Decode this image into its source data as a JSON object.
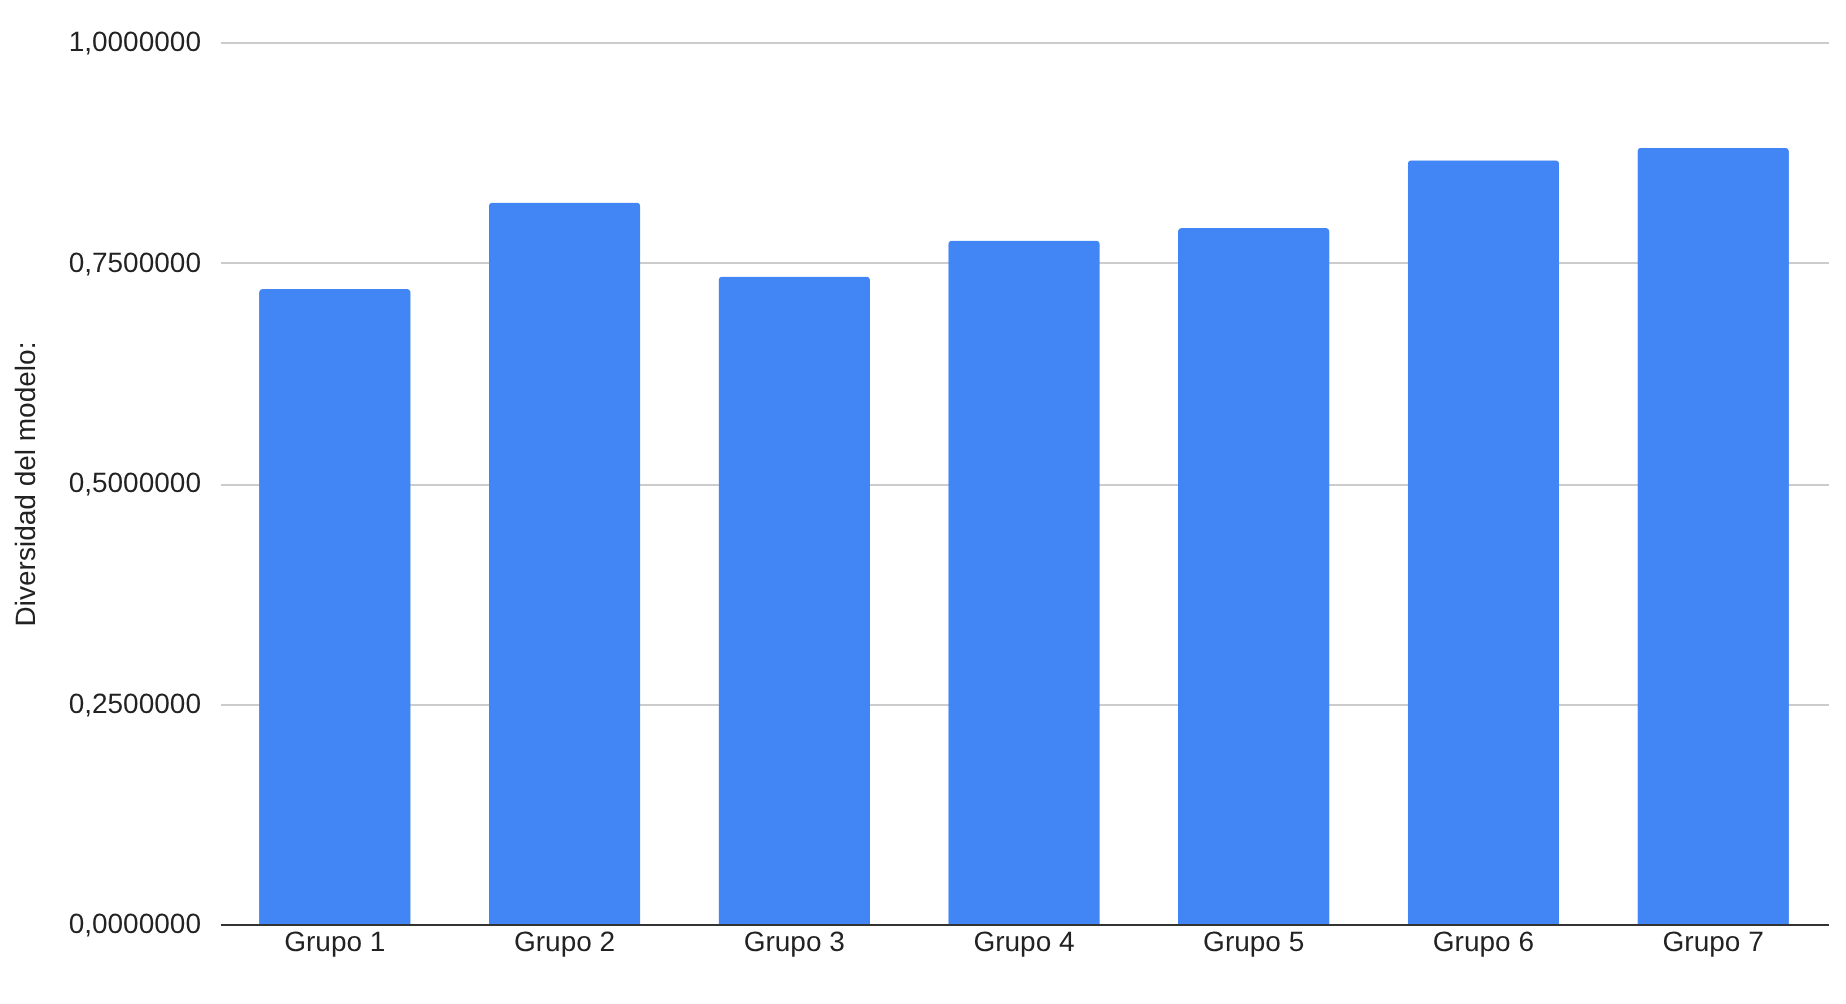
{
  "chart_data": {
    "type": "bar",
    "ylabel": "Diversidad del modelo:",
    "categories": [
      "Grupo 1",
      "Grupo 2",
      "Grupo 3",
      "Grupo 4",
      "Grupo 5",
      "Grupo 6",
      "Grupo 7"
    ],
    "values": [
      0.72,
      0.818,
      0.734,
      0.775,
      0.789,
      0.866,
      0.88
    ],
    "color": "#4285f4",
    "ylim": [
      0,
      1
    ],
    "yticks": [
      {
        "value": 0,
        "label": "0,0000000"
      },
      {
        "value": 0.25,
        "label": "0,2500000"
      },
      {
        "value": 0.5,
        "label": "0,5000000"
      },
      {
        "value": 0.75,
        "label": "0,7500000"
      },
      {
        "value": 1,
        "label": "1,0000000"
      }
    ],
    "grid": "y"
  }
}
